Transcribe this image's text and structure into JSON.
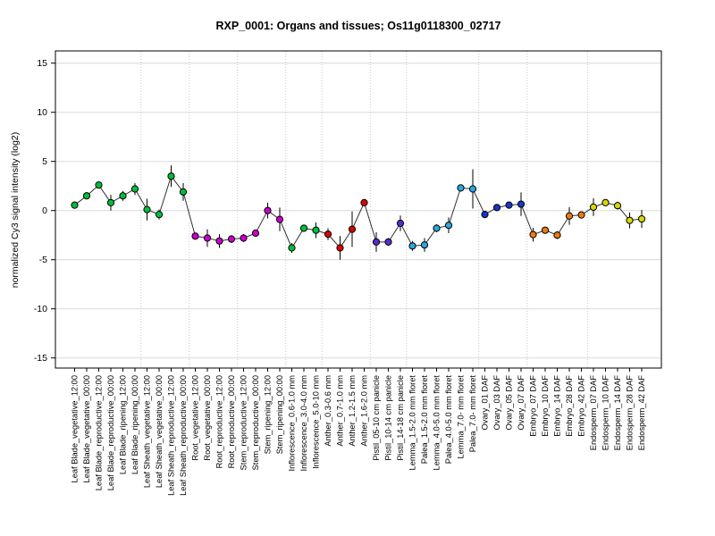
{
  "chart_data": {
    "type": "line",
    "title": "RXP_0001: Organs and tissues; Os11g0118300_02717",
    "ylabel": "normalized Cy3 signal intensity (log2)",
    "ylim": [
      -16,
      16.3
    ],
    "yticks": [
      -15,
      -10,
      -5,
      0,
      5,
      10,
      15
    ],
    "grid": {
      "horizontal": "solid-light-gray",
      "group_separators": "dotted-light-gray"
    },
    "marker": "filled-circle-black-outline",
    "line_color": "#303030",
    "groups": [
      {
        "name": "Leaf Blade",
        "color": "#00BE3C",
        "points": [
          {
            "label": "Leaf Blade_vegetative_12:00",
            "value": 0.55,
            "err": 0.2
          },
          {
            "label": "Leaf Blade_vegetative_00:00",
            "value": 1.5,
            "err": 0.3
          },
          {
            "label": "Leaf Blade_reproductive_12:00",
            "value": 2.6,
            "err": 0.2
          },
          {
            "label": "Leaf Blade_reproductive_00:00",
            "value": 0.8,
            "err": 0.8
          },
          {
            "label": "Leaf Blade_ripening_12:00",
            "value": 1.5,
            "err": 0.5
          },
          {
            "label": "Leaf Blade_ripening_00:00",
            "value": 2.2,
            "err": 0.6
          }
        ]
      },
      {
        "name": "Leaf Sheath",
        "color": "#00BE3C",
        "points": [
          {
            "label": "Leaf Sheath_vegetative_12:00",
            "value": 0.1,
            "err": 1.1
          },
          {
            "label": "Leaf Sheath_vegetative_00:00",
            "value": -0.4,
            "err": 0.5
          },
          {
            "label": "Leaf Sheath_reproductive_12:00",
            "value": 3.5,
            "err": 1.1
          },
          {
            "label": "Leaf Sheath_reproductive_00:00",
            "value": 1.9,
            "err": 0.9
          }
        ]
      },
      {
        "name": "Root",
        "color": "#CC00CC",
        "points": [
          {
            "label": "Root_vegetative_12:00",
            "value": -2.6,
            "err": 0.3
          },
          {
            "label": "Root_vegetative_00:00",
            "value": -2.8,
            "err": 0.9
          },
          {
            "label": "Root_reproductive_12:00",
            "value": -3.1,
            "err": 0.7
          },
          {
            "label": "Root_reproductive_00:00",
            "value": -2.9,
            "err": 0.4
          }
        ]
      },
      {
        "name": "Stem",
        "color": "#CC00CC",
        "points": [
          {
            "label": "Stem_reproductive_12:00",
            "value": -2.8,
            "err": 0.4
          },
          {
            "label": "Stem_reproductive_00:00",
            "value": -2.3,
            "err": 0.3
          },
          {
            "label": "Stem_ripening_12:00",
            "value": 0.0,
            "err": 0.8
          },
          {
            "label": "Stem_ripening_00:00",
            "value": -0.9,
            "err": 1.2
          }
        ]
      },
      {
        "name": "Inflorescence",
        "color": "#00BE3C",
        "points": [
          {
            "label": "Inflorescence_0.6-1.0 mm",
            "value": -3.8,
            "err": 0.5
          },
          {
            "label": "Inflorescence_3.0-4.0 mm",
            "value": -1.8,
            "err": 0.3
          },
          {
            "label": "Inflorescence_5.0-10 mm",
            "value": -2.0,
            "err": 0.8
          }
        ]
      },
      {
        "name": "Anther",
        "color": "#DD0000",
        "points": [
          {
            "label": "Anther_0.3-0.6 mm",
            "value": -2.4,
            "err": 0.6
          },
          {
            "label": "Anther_0.7-1.0 mm",
            "value": -3.8,
            "err": 1.2
          },
          {
            "label": "Anther_1.2-1.5 mm",
            "value": -1.9,
            "err": 1.8
          },
          {
            "label": "Anther_1.6-2.0 mm",
            "value": 0.8,
            "err": 0.3
          }
        ]
      },
      {
        "name": "Pistil",
        "color": "#5A2BD0",
        "points": [
          {
            "label": "Pistil_05-10 cm panicle",
            "value": -3.2,
            "err": 1.0
          },
          {
            "label": "Pistil_10-14 cm panicle",
            "value": -3.2,
            "err": 0.4
          },
          {
            "label": "Pistil_14-18 cm panicle",
            "value": -1.3,
            "err": 0.8
          }
        ]
      },
      {
        "name": "Lemma/Palea",
        "color": "#29A8DC",
        "points": [
          {
            "label": "Lemma_1.5-2.0 mm floret",
            "value": -3.6,
            "err": 0.5
          },
          {
            "label": "Palea_1.5-2.0 mm floret",
            "value": -3.5,
            "err": 0.7
          },
          {
            "label": "Lemma_4.0-5.0 mm floret",
            "value": -1.8,
            "err": 0.4
          },
          {
            "label": "Palea_4.0-5.0 mm floret",
            "value": -1.5,
            "err": 0.8
          },
          {
            "label": "Lemma_7.0- mm floret",
            "value": 2.3,
            "err": 0.3
          },
          {
            "label": "Palea_7.0- mm floret",
            "value": 2.2,
            "err": 2.0
          }
        ]
      },
      {
        "name": "Ovary",
        "color": "#1A35C8",
        "points": [
          {
            "label": "Ovary_01 DAF",
            "value": -0.4,
            "err": 0.25
          },
          {
            "label": "Ovary_03 DAF",
            "value": 0.3,
            "err": 0.2
          },
          {
            "label": "Ovary_05 DAF",
            "value": 0.55,
            "err": 0.2
          },
          {
            "label": "Ovary_07 DAF",
            "value": 0.65,
            "err": 1.2
          }
        ]
      },
      {
        "name": "Embryo",
        "color": "#F07814",
        "points": [
          {
            "label": "Embryo_07 DAF",
            "value": -2.45,
            "err": 0.7
          },
          {
            "label": "Embryo_10 DAF",
            "value": -2.0,
            "err": 0.3
          },
          {
            "label": "Embryo_14 DAF",
            "value": -2.5,
            "err": 0.4
          },
          {
            "label": "Embryo_28 DAF",
            "value": -0.55,
            "err": 0.9
          },
          {
            "label": "Embryo_42 DAF",
            "value": -0.45,
            "err": 0.3
          }
        ]
      },
      {
        "name": "Endosperm",
        "color": "#D8D800",
        "points": [
          {
            "label": "Endosperm_07 DAF",
            "value": 0.35,
            "err": 0.9
          },
          {
            "label": "Endosperm_10 DAF",
            "value": 0.8,
            "err": 0.25
          },
          {
            "label": "Endosperm_14 DAF",
            "value": 0.5,
            "err": 0.4
          },
          {
            "label": "Endosperm_28 DAF",
            "value": -1.0,
            "err": 0.8
          },
          {
            "label": "Endosperm_42 DAF",
            "value": -0.85,
            "err": 0.9
          }
        ]
      }
    ]
  }
}
